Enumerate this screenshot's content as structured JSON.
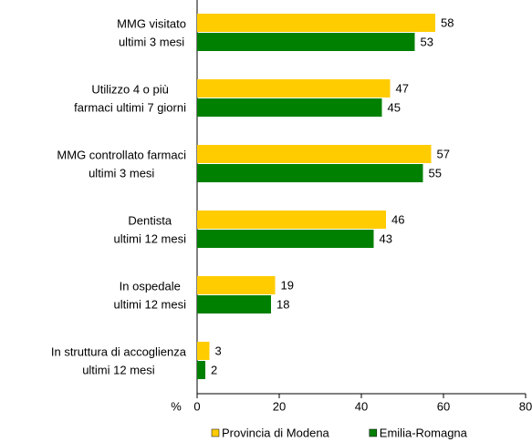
{
  "chart_data": {
    "type": "bar",
    "orientation": "horizontal",
    "categories": [
      [
        "MMG visitato",
        "ultimi 3 mesi"
      ],
      [
        "Utilizzo 4 o più",
        "farmaci ultimi 7 giorni"
      ],
      [
        "MMG controllato farmaci",
        "ultimi 3 mesi"
      ],
      [
        "Dentista",
        "ultimi 12 mesi"
      ],
      [
        "In ospedale",
        "ultimi 12 mesi"
      ],
      [
        "In struttura di accoglienza",
        "ultimi 12 mesi"
      ]
    ],
    "series": [
      {
        "name": "Provincia di Modena",
        "color": "#FFCC00",
        "values": [
          58,
          47,
          57,
          46,
          19,
          3
        ]
      },
      {
        "name": "Emilia-Romagna",
        "color": "#008000",
        "values": [
          53,
          45,
          55,
          43,
          18,
          2
        ]
      }
    ],
    "xlabel": "%",
    "xlim": [
      0,
      80
    ],
    "xticks": [
      0,
      20,
      40,
      60,
      80
    ],
    "legend": "bottom"
  }
}
